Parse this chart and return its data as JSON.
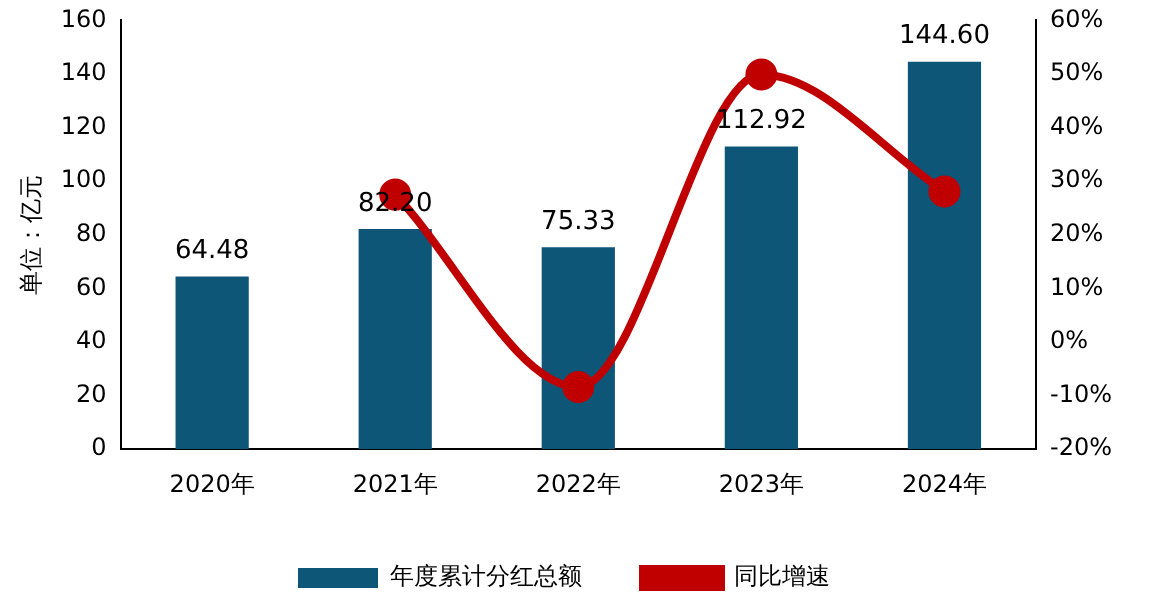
{
  "chart_data": {
    "type": "bar",
    "ylabel": "单位：亿元",
    "categories": [
      "2020年",
      "2021年",
      "2022年",
      "2023年",
      "2024年"
    ],
    "series": [
      {
        "name": "年度累计分红总额",
        "color": "#0d5677",
        "values": [
          64.48,
          82.2,
          75.33,
          112.92,
          144.6
        ],
        "value_labels": [
          "64.48",
          "82.20",
          "75.33",
          "112.92",
          "144.60"
        ]
      },
      {
        "name": "同比增速",
        "type": "line",
        "axis": "y2",
        "color": "#c00000",
        "marker": "circle",
        "values": [
          null,
          27.5,
          -8.4,
          49.9,
          28.1
        ]
      }
    ],
    "ylim": [
      0,
      160
    ],
    "yticks": [
      0,
      20,
      40,
      60,
      80,
      100,
      120,
      140,
      160
    ],
    "y2lim": [
      -20,
      60
    ],
    "y2ticks": [
      {
        "value": -20,
        "label": "-20%"
      },
      {
        "value": -10,
        "label": "-10%"
      },
      {
        "value": 0,
        "label": "0%"
      },
      {
        "value": 10,
        "label": "10%"
      },
      {
        "value": 20,
        "label": "20%"
      },
      {
        "value": 30,
        "label": "30%"
      },
      {
        "value": 40,
        "label": "40%"
      },
      {
        "value": 50,
        "label": "50%"
      },
      {
        "value": 60,
        "label": "60%"
      }
    ],
    "grid": false,
    "legend": "bottom"
  }
}
